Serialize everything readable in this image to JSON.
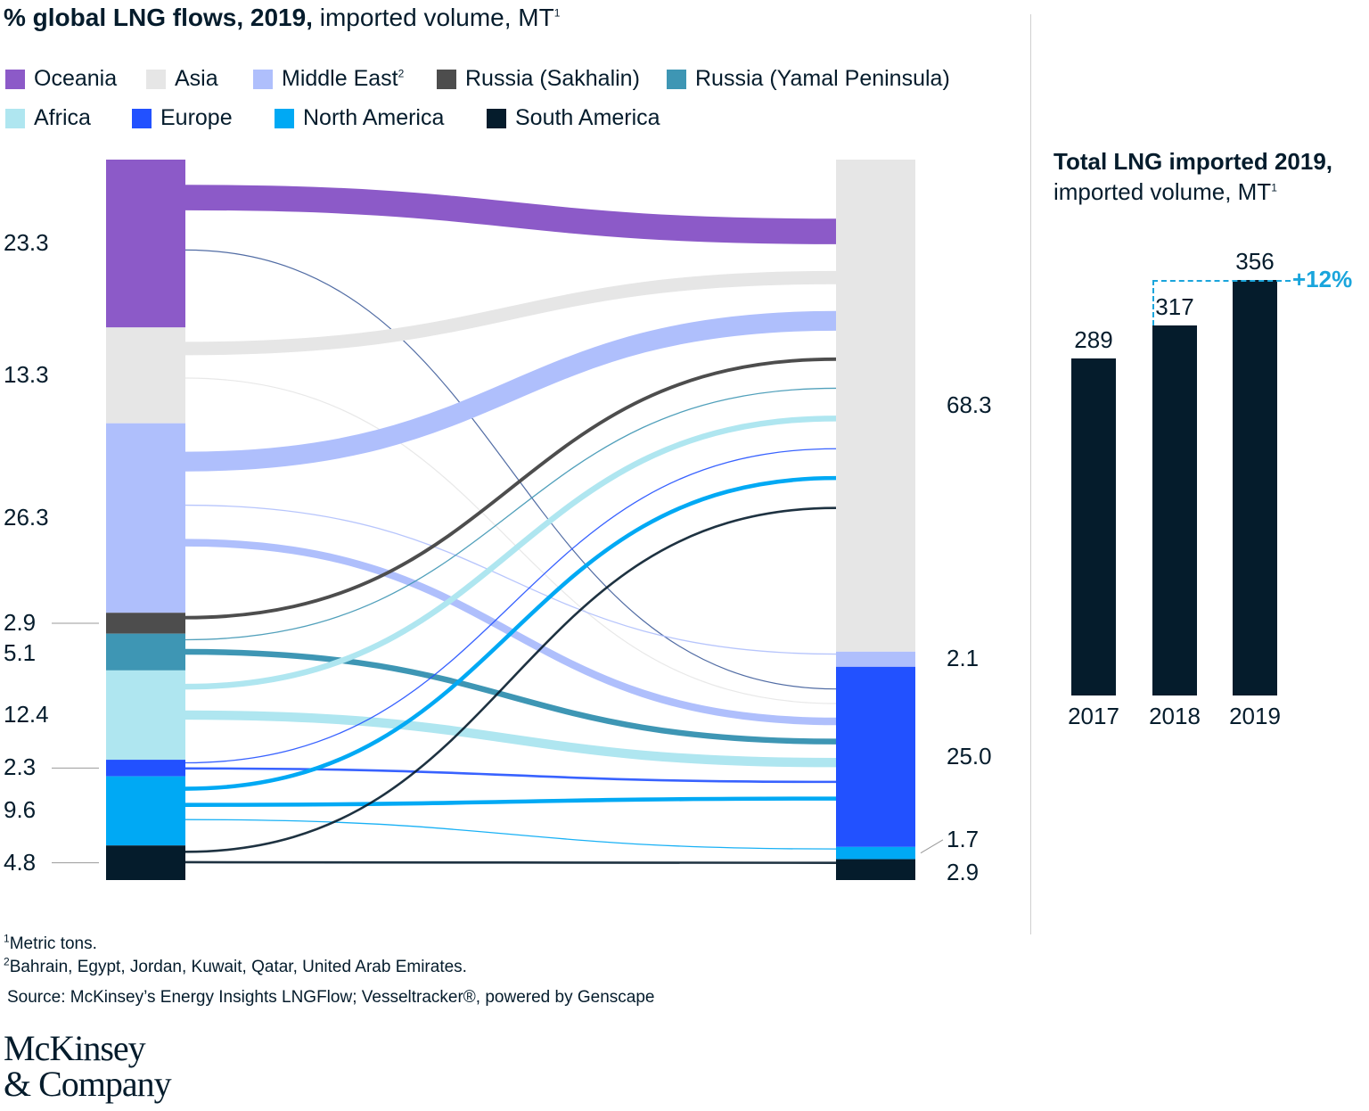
{
  "title": {
    "bold": "% global LNG flows, 2019,",
    "rest": " imported volume, MT",
    "sup": "1"
  },
  "legend": [
    {
      "label": "Oceania",
      "color": "#8c5ac8"
    },
    {
      "label": "Asia",
      "color": "#e6e6e6"
    },
    {
      "label": "Middle East",
      "sup": "2",
      "color": "#afbffc"
    },
    {
      "label": "Russia (Sakhalin)",
      "color": "#4d4d4d"
    },
    {
      "label": "Russia (Yamal Peninsula)",
      "color": "#3e96b4"
    },
    {
      "label": "Africa",
      "color": "#afe6f0"
    },
    {
      "label": "Europe",
      "color": "#2251ff"
    },
    {
      "label": "North America",
      "color": "#00a9f4"
    },
    {
      "label": "South America",
      "color": "#051c2c"
    }
  ],
  "chart_data": [
    {
      "type": "sankey",
      "title": "% global LNG flows, 2019, imported volume, MT",
      "sources": [
        {
          "name": "Oceania",
          "value": 23.3,
          "label": "23.3",
          "color": "#8c5ac8"
        },
        {
          "name": "Asia",
          "value": 13.3,
          "label": "13.3",
          "color": "#e6e6e6"
        },
        {
          "name": "Middle East",
          "value": 26.3,
          "label": "26.3",
          "color": "#afbffc"
        },
        {
          "name": "Russia (Sakhalin)",
          "value": 2.9,
          "label": "2.9",
          "color": "#4d4d4d"
        },
        {
          "name": "Russia (Yamal Peninsula)",
          "value": 5.1,
          "label": "5.1",
          "color": "#3e96b4"
        },
        {
          "name": "Africa",
          "value": 12.4,
          "label": "12.4",
          "color": "#afe6f0"
        },
        {
          "name": "Europe",
          "value": 2.3,
          "label": "2.3",
          "color": "#2251ff"
        },
        {
          "name": "North America",
          "value": 9.6,
          "label": "9.6",
          "color": "#00a9f4"
        },
        {
          "name": "South America",
          "value": 4.8,
          "label": "4.8",
          "color": "#051c2c"
        }
      ],
      "targets": [
        {
          "name": "Asia",
          "value": 68.3,
          "label": "68.3",
          "color": "#e6e6e6"
        },
        {
          "name": "Middle East",
          "value": 2.1,
          "label": "2.1",
          "color": "#afbffc"
        },
        {
          "name": "Europe",
          "value": 25.0,
          "label": "25.0",
          "color": "#2251ff"
        },
        {
          "name": "North America",
          "value": 1.7,
          "label": "1.7",
          "color": "#00a9f4"
        },
        {
          "name": "South America",
          "value": 2.9,
          "label": "2.9",
          "color": "#051c2c"
        }
      ],
      "flows": [
        {
          "from": "Oceania",
          "to": "Asia",
          "value": 4.4,
          "color": "#8c5ac8"
        },
        {
          "from": "Oceania",
          "to": "Europe",
          "value": 0.1,
          "color": "#3e5c9a"
        },
        {
          "from": "Asia",
          "to": "Asia",
          "value": 2.3,
          "color": "#e6e6e6"
        },
        {
          "from": "Asia",
          "to": "Europe",
          "value": 0.1,
          "color": "#e6e6e6"
        },
        {
          "from": "Middle East",
          "to": "Asia",
          "value": 3.4,
          "color": "#afbffc"
        },
        {
          "from": "Middle East",
          "to": "Middle East",
          "value": 0.2,
          "color": "#afbffc"
        },
        {
          "from": "Middle East",
          "to": "Europe",
          "value": 1.3,
          "color": "#afbffc"
        },
        {
          "from": "Russia (Sakhalin)",
          "to": "Asia",
          "value": 0.6,
          "color": "#4d4d4d"
        },
        {
          "from": "Russia (Yamal Peninsula)",
          "to": "Asia",
          "value": 0.2,
          "color": "#3e96b4"
        },
        {
          "from": "Russia (Yamal Peninsula)",
          "to": "Europe",
          "value": 1.0,
          "color": "#3e96b4"
        },
        {
          "from": "Africa",
          "to": "Asia",
          "value": 1.0,
          "color": "#afe6f0"
        },
        {
          "from": "Africa",
          "to": "Europe",
          "value": 1.6,
          "color": "#afe6f0"
        },
        {
          "from": "Europe",
          "to": "Asia",
          "value": 0.2,
          "color": "#2251ff"
        },
        {
          "from": "Europe",
          "to": "Europe",
          "value": 0.4,
          "color": "#2251ff"
        },
        {
          "from": "North America",
          "to": "Asia",
          "value": 0.7,
          "color": "#00a9f4"
        },
        {
          "from": "North America",
          "to": "Europe",
          "value": 0.7,
          "color": "#00a9f4"
        },
        {
          "from": "North America",
          "to": "North America",
          "value": 0.2,
          "color": "#00a9f4"
        },
        {
          "from": "South America",
          "to": "Asia",
          "value": 0.4,
          "color": "#051c2c"
        },
        {
          "from": "South America",
          "to": "South America",
          "value": 0.4,
          "color": "#051c2c"
        }
      ]
    },
    {
      "type": "bar",
      "title": "Total LNG imported 2019, imported volume, MT",
      "categories": [
        "2017",
        "2018",
        "2019"
      ],
      "values": [
        289,
        317,
        356
      ],
      "color": "#051c2c",
      "annotation": "+12%",
      "annotation_color": "#1aa5dc"
    }
  ],
  "bar_title": {
    "bold": "Total LNG imported 2019,",
    "rest": " imported volume, MT",
    "sup": "1"
  },
  "footnotes": {
    "note1_sup": "1",
    "note1": "Metric tons.",
    "note2_sup": "2",
    "note2": "Bahrain, Egypt, Jordan, Kuwait, Qatar, United Arab Emirates.",
    "source": "Source: McKinsey’s Energy Insights LNGFlow; Vesseltracker®, powered by Genscape"
  },
  "logo": {
    "line1": "McKinsey",
    "line2": "& Company"
  }
}
